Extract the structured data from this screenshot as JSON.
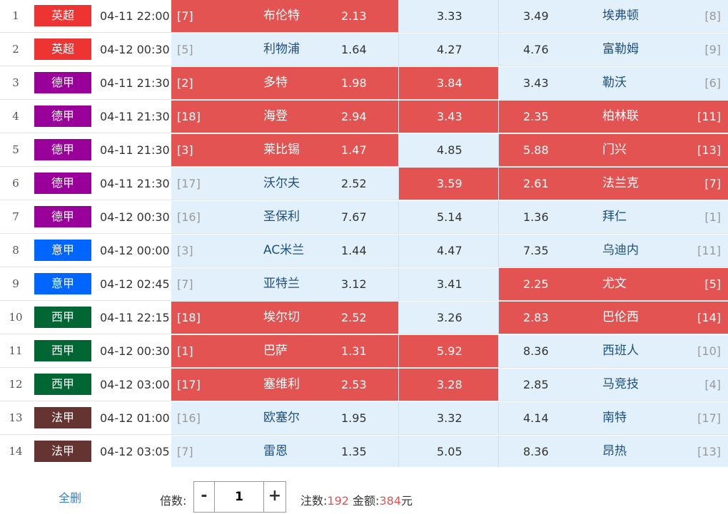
{
  "colors": {
    "selected": "#e35352",
    "unselected": "#e2f0fb",
    "league": {
      "英超": "#ee3333",
      "德甲": "#990099",
      "意甲": "#0066ff",
      "西甲": "#006633",
      "法甲": "#663333"
    }
  },
  "matches": [
    {
      "no": "1",
      "league": "英超",
      "time": "04-11 22:00",
      "home_rank": "[7]",
      "home": "布伦特",
      "odds_win": "2.13",
      "odds_draw": "3.33",
      "odds_lose": "3.49",
      "away": "埃弗顿",
      "away_rank": "[8]",
      "sel": [
        true,
        false,
        false
      ]
    },
    {
      "no": "2",
      "league": "英超",
      "time": "04-12 00:30",
      "home_rank": "[5]",
      "home": "利物浦",
      "odds_win": "1.64",
      "odds_draw": "4.27",
      "odds_lose": "4.76",
      "away": "富勒姆",
      "away_rank": "[9]",
      "sel": [
        false,
        false,
        false
      ]
    },
    {
      "no": "3",
      "league": "德甲",
      "time": "04-11 21:30",
      "home_rank": "[2]",
      "home": "多特",
      "odds_win": "1.98",
      "odds_draw": "3.84",
      "odds_lose": "3.43",
      "away": "勒沃",
      "away_rank": "[6]",
      "sel": [
        true,
        true,
        false
      ]
    },
    {
      "no": "4",
      "league": "德甲",
      "time": "04-11 21:30",
      "home_rank": "[18]",
      "home": "海登",
      "odds_win": "2.94",
      "odds_draw": "3.43",
      "odds_lose": "2.35",
      "away": "柏林联",
      "away_rank": "[11]",
      "sel": [
        true,
        true,
        true
      ]
    },
    {
      "no": "5",
      "league": "德甲",
      "time": "04-11 21:30",
      "home_rank": "[3]",
      "home": "莱比锡",
      "odds_win": "1.47",
      "odds_draw": "4.85",
      "odds_lose": "5.88",
      "away": "门兴",
      "away_rank": "[13]",
      "sel": [
        true,
        false,
        true
      ]
    },
    {
      "no": "6",
      "league": "德甲",
      "time": "04-11 21:30",
      "home_rank": "[17]",
      "home": "沃尔夫",
      "odds_win": "2.52",
      "odds_draw": "3.59",
      "odds_lose": "2.61",
      "away": "法兰克",
      "away_rank": "[7]",
      "sel": [
        false,
        true,
        true
      ]
    },
    {
      "no": "7",
      "league": "德甲",
      "time": "04-12 00:30",
      "home_rank": "[16]",
      "home": "圣保利",
      "odds_win": "7.67",
      "odds_draw": "5.14",
      "odds_lose": "1.36",
      "away": "拜仁",
      "away_rank": "[1]",
      "sel": [
        false,
        false,
        false
      ]
    },
    {
      "no": "8",
      "league": "意甲",
      "time": "04-12 00:00",
      "home_rank": "[3]",
      "home": "AC米兰",
      "odds_win": "1.44",
      "odds_draw": "4.47",
      "odds_lose": "7.35",
      "away": "乌迪内",
      "away_rank": "[11]",
      "sel": [
        false,
        false,
        false
      ]
    },
    {
      "no": "9",
      "league": "意甲",
      "time": "04-12 02:45",
      "home_rank": "[7]",
      "home": "亚特兰",
      "odds_win": "3.12",
      "odds_draw": "3.41",
      "odds_lose": "2.25",
      "away": "尤文",
      "away_rank": "[5]",
      "sel": [
        false,
        false,
        true
      ]
    },
    {
      "no": "10",
      "league": "西甲",
      "time": "04-11 22:15",
      "home_rank": "[18]",
      "home": "埃尔切",
      "odds_win": "2.52",
      "odds_draw": "3.26",
      "odds_lose": "2.83",
      "away": "巴伦西",
      "away_rank": "[14]",
      "sel": [
        true,
        false,
        true
      ]
    },
    {
      "no": "11",
      "league": "西甲",
      "time": "04-12 00:30",
      "home_rank": "[1]",
      "home": "巴萨",
      "odds_win": "1.31",
      "odds_draw": "5.92",
      "odds_lose": "8.36",
      "away": "西班人",
      "away_rank": "[10]",
      "sel": [
        true,
        true,
        false
      ]
    },
    {
      "no": "12",
      "league": "西甲",
      "time": "04-12 03:00",
      "home_rank": "[17]",
      "home": "塞维利",
      "odds_win": "2.53",
      "odds_draw": "3.28",
      "odds_lose": "2.85",
      "away": "马竞技",
      "away_rank": "[4]",
      "sel": [
        true,
        true,
        false
      ]
    },
    {
      "no": "13",
      "league": "法甲",
      "time": "04-12 01:00",
      "home_rank": "[16]",
      "home": "欧塞尔",
      "odds_win": "1.95",
      "odds_draw": "3.32",
      "odds_lose": "4.14",
      "away": "南特",
      "away_rank": "[17]",
      "sel": [
        false,
        false,
        false
      ]
    },
    {
      "no": "14",
      "league": "法甲",
      "time": "04-12 03:05",
      "home_rank": "[7]",
      "home": "雷恩",
      "odds_win": "1.35",
      "odds_draw": "5.05",
      "odds_lose": "8.36",
      "away": "昂热",
      "away_rank": "[13]",
      "sel": [
        false,
        false,
        false
      ]
    }
  ],
  "footer": {
    "clear_all": "全删",
    "multiplier_label": "倍数:",
    "minus": "-",
    "multiplier": "1",
    "plus": "+",
    "bets_label": "注数:",
    "bets_value": "192",
    "amount_label": "金额:",
    "amount_value": "384",
    "amount_unit": "元"
  }
}
